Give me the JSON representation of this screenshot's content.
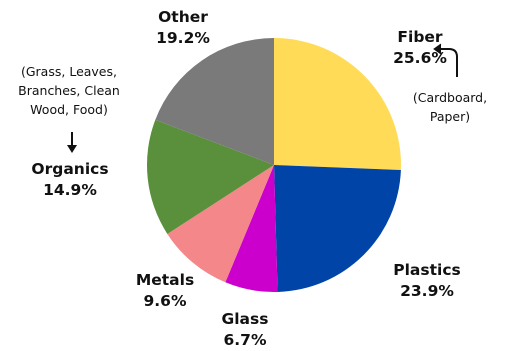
{
  "chart_data": {
    "type": "pie",
    "title": "",
    "slices": [
      {
        "label": "Fiber",
        "value": 25.6,
        "pct_text": "25.6%",
        "color": "#FFDB58"
      },
      {
        "label": "Plastics",
        "value": 23.9,
        "pct_text": "23.9%",
        "color": "#0044A8"
      },
      {
        "label": "Glass",
        "value": 6.7,
        "pct_text": "6.7%",
        "color": "#CC00CC"
      },
      {
        "label": "Metals",
        "value": 9.6,
        "pct_text": "9.6%",
        "color": "#F4878A"
      },
      {
        "label": "Organics",
        "value": 14.9,
        "pct_text": "14.9%",
        "color": "#5A8F3C"
      },
      {
        "label": "Other",
        "value": 19.2,
        "pct_text": "19.2%",
        "color": "#7A7A7A"
      }
    ],
    "start_angle": "12 o'clock",
    "direction": "clockwise",
    "annotations": {
      "fiber_note": [
        "(Cardboard,",
        "Paper)"
      ],
      "organics_note": [
        "(Grass, Leaves,",
        "Branches, Clean",
        "Wood, Food)"
      ]
    }
  }
}
